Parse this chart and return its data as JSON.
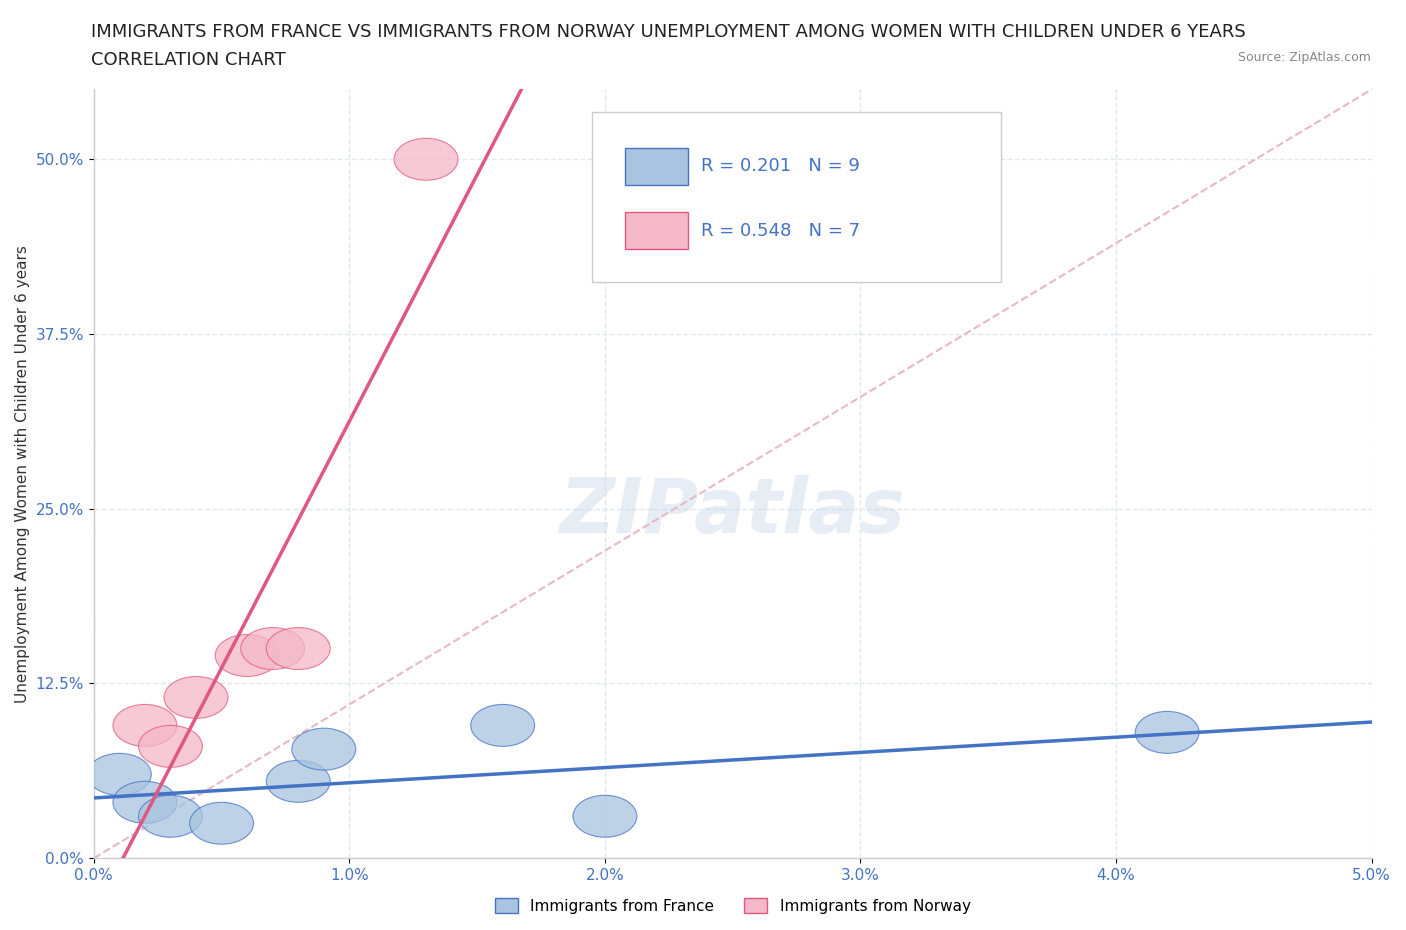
{
  "title_line1": "IMMIGRANTS FROM FRANCE VS IMMIGRANTS FROM NORWAY UNEMPLOYMENT AMONG WOMEN WITH CHILDREN UNDER 6 YEARS",
  "title_line2": "CORRELATION CHART",
  "source_text": "Source: ZipAtlas.com",
  "ylabel": "Unemployment Among Women with Children Under 6 years",
  "xlim": [
    0.0,
    0.05
  ],
  "ylim": [
    0.0,
    0.55
  ],
  "xticks": [
    0.0,
    0.01,
    0.02,
    0.03,
    0.04,
    0.05
  ],
  "xticklabels": [
    "0.0%",
    "1.0%",
    "2.0%",
    "3.0%",
    "4.0%",
    "5.0%"
  ],
  "yticks": [
    0.0,
    0.125,
    0.25,
    0.375,
    0.5
  ],
  "yticklabels": [
    "0.0%",
    "12.5%",
    "25.0%",
    "37.5%",
    "50.0%"
  ],
  "france_x": [
    0.001,
    0.002,
    0.003,
    0.005,
    0.008,
    0.009,
    0.016,
    0.02,
    0.042
  ],
  "france_y": [
    0.06,
    0.04,
    0.03,
    0.025,
    0.055,
    0.078,
    0.095,
    0.03,
    0.09
  ],
  "norway_x": [
    0.002,
    0.003,
    0.004,
    0.006,
    0.007,
    0.008,
    0.013
  ],
  "norway_y": [
    0.095,
    0.08,
    0.115,
    0.145,
    0.15,
    0.15,
    0.5
  ],
  "france_color": "#a8c4e0",
  "norway_color": "#f4b8c8",
  "france_line_color": "#4472c4",
  "norway_line_color": "#e05880",
  "diagonal_color": "#e8b8c8",
  "R_france": 0.201,
  "N_france": 9,
  "R_norway": 0.548,
  "N_norway": 7,
  "legend_label_france": "Immigrants from France",
  "legend_label_norway": "Immigrants from Norway",
  "watermark_text": "ZIPatlas",
  "grid_color": "#dde8f0",
  "background_color": "#ffffff",
  "title_fontsize": 13,
  "axis_label_fontsize": 11,
  "tick_fontsize": 11,
  "legend_fontsize": 13,
  "r_label_color": "#4472c4"
}
